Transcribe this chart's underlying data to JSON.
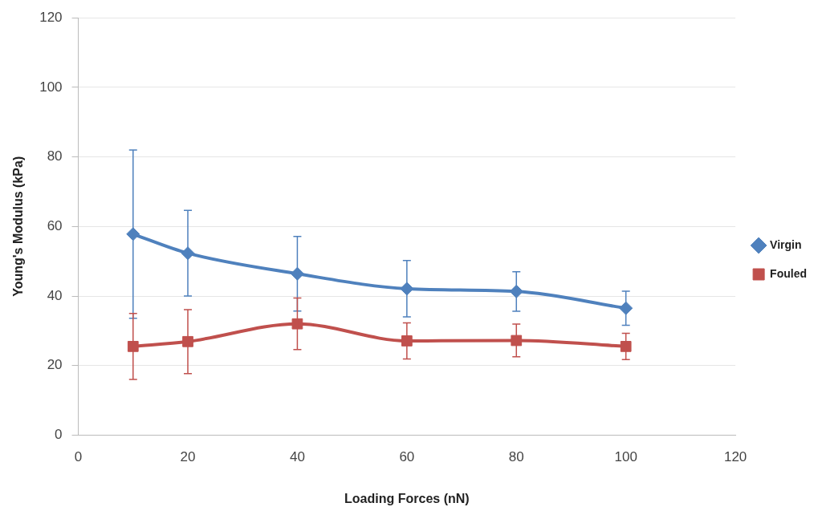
{
  "chart_data": {
    "type": "line",
    "xlabel": "Loading Forces (nN)",
    "ylabel": "Young's Modulus (kPa)",
    "x": [
      10,
      20,
      40,
      60,
      80,
      100
    ],
    "series": [
      {
        "name": "Virgin",
        "color": "#4f81bd",
        "marker": "diamond",
        "values": [
          57.8,
          52.3,
          46.4,
          42.1,
          41.3,
          36.5
        ],
        "errors": [
          24.2,
          12.3,
          10.7,
          8.1,
          5.7,
          4.9
        ]
      },
      {
        "name": "Fouled",
        "color": "#c0504d",
        "marker": "square",
        "values": [
          25.5,
          26.9,
          32.0,
          27.1,
          27.2,
          25.5
        ],
        "errors": [
          9.5,
          9.2,
          7.4,
          5.2,
          4.7,
          3.8
        ]
      }
    ],
    "xlim": [
      0,
      120
    ],
    "xticks": [
      0,
      20,
      40,
      60,
      80,
      100,
      120
    ],
    "ylim": [
      0,
      120
    ],
    "yticks": [
      0,
      20,
      40,
      60,
      80,
      100,
      120
    ],
    "grid": "y",
    "legend": "right",
    "line_style": "solid"
  }
}
